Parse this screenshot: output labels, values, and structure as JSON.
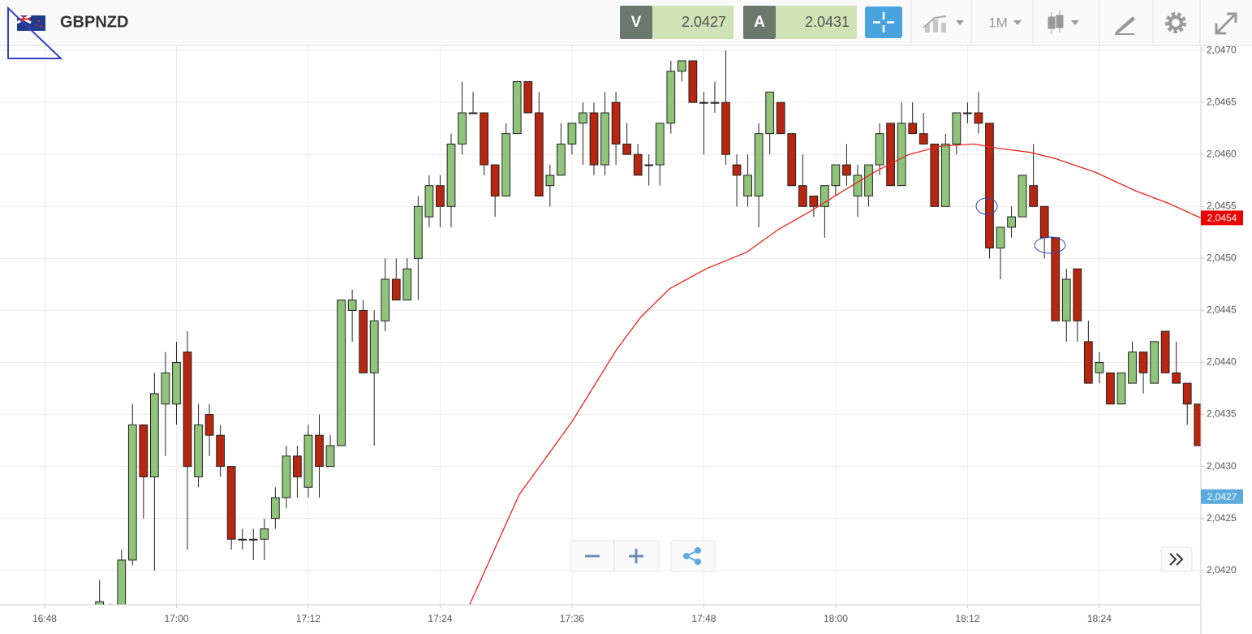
{
  "chart_data": {
    "type": "candlestick",
    "title": "GBPNZD",
    "quotes": [
      {
        "label": "V",
        "value": 2.0427
      },
      {
        "label": "A",
        "value": 2.0431
      }
    ],
    "timeframe": "1M",
    "up_color": "#8fc47a",
    "down_color": "#b8260f",
    "x": [
      1013,
      1014,
      1015,
      1016,
      1017,
      1018,
      1019,
      1020,
      1021,
      1022,
      1023,
      1024,
      1025,
      1026,
      1027,
      1028,
      1029,
      1030,
      1031,
      1032,
      1033,
      1034,
      1035,
      1036,
      1037,
      1038,
      1039,
      1040,
      1041,
      1042,
      1043,
      1044,
      1045,
      1046,
      1047,
      1048,
      1049,
      1050,
      1051,
      1052,
      1053,
      1054,
      1055,
      1056,
      1057,
      1058,
      1059,
      1060,
      1061,
      1062,
      1063,
      1064,
      1065,
      1066,
      1067,
      1068,
      1069,
      1070,
      1071,
      1072,
      1073,
      1074,
      1075,
      1076,
      1077,
      1078,
      1079,
      1080,
      1081,
      1082,
      1083,
      1084,
      1085,
      1086,
      1087,
      1088,
      1089,
      1090,
      1091,
      1092,
      1093,
      1094,
      1095,
      1096,
      1097,
      1098,
      1099,
      1100,
      1101,
      1102,
      1103,
      1104,
      1105,
      1106,
      1107,
      1108,
      1109,
      1110,
      1111,
      1112,
      1113
    ],
    "open": [
      2.04167,
      2.0416,
      2.04162,
      2.0421,
      2.0434,
      2.0429,
      2.0436,
      2.0436,
      2.0441,
      2.0429,
      2.0435,
      2.0433,
      2.043,
      2.0423,
      2.0423,
      2.0423,
      2.0425,
      2.0427,
      2.0431,
      2.0428,
      2.0433,
      2.043,
      2.0432,
      2.0445,
      2.0445,
      2.0439,
      2.0444,
      2.0448,
      2.0446,
      2.045,
      2.0454,
      2.0457,
      2.0455,
      2.0461,
      2.0464,
      2.0464,
      2.0459,
      2.0456,
      2.0462,
      2.0467,
      2.0464,
      2.0457,
      2.0458,
      2.0461,
      2.0463,
      2.0464,
      2.0459,
      2.0465,
      2.0461,
      2.046,
      2.0459,
      2.0459,
      2.0463,
      2.0468,
      2.0469,
      2.0465,
      2.0465,
      2.0465,
      2.0459,
      2.0456,
      2.0456,
      2.0462,
      2.0465,
      2.0462,
      2.0457,
      2.0456,
      2.0455,
      2.0457,
      2.0459,
      2.0456,
      2.0456,
      2.0459,
      2.0463,
      2.0457,
      2.0463,
      2.0462,
      2.0461,
      2.0455,
      2.0461,
      2.0464,
      2.0464,
      2.0463,
      2.0451,
      2.0453,
      2.0454,
      2.0457,
      2.0455,
      2.0452,
      2.0444,
      2.0449,
      2.0442,
      2.0439,
      2.0439,
      2.0436,
      2.0438,
      2.0441,
      2.0438,
      2.0443,
      2.0439,
      2.0438,
      2.0436
    ],
    "high": [
      2.04191,
      2.04168,
      2.0422,
      2.0436,
      2.0434,
      2.0439,
      2.0441,
      2.0442,
      2.0443,
      2.0436,
      2.0436,
      2.0434,
      2.043,
      2.0424,
      2.0424,
      2.0425,
      2.0428,
      2.0432,
      2.0432,
      2.0434,
      2.0435,
      2.0433,
      2.0446,
      2.0447,
      2.0446,
      2.0445,
      2.045,
      2.045,
      2.045,
      2.0456,
      2.0458,
      2.0458,
      2.0462,
      2.0467,
      2.0466,
      2.0464,
      2.0459,
      2.0463,
      2.0467,
      2.0467,
      2.0466,
      2.0459,
      2.0463,
      2.0463,
      2.0465,
      2.0465,
      2.0466,
      2.0466,
      2.0463,
      2.0461,
      2.046,
      2.0463,
      2.0469,
      2.0469,
      2.0469,
      2.0466,
      2.0467,
      2.047,
      2.046,
      2.046,
      2.0463,
      2.0466,
      2.0465,
      2.0462,
      2.046,
      2.0456,
      2.0457,
      2.0459,
      2.0461,
      2.0459,
      2.0459,
      2.0463,
      2.0463,
      2.0465,
      2.0465,
      2.0464,
      2.0461,
      2.0462,
      2.0464,
      2.0465,
      2.0466,
      2.0463,
      2.0453,
      2.0455,
      2.0458,
      2.0461,
      2.0455,
      2.0452,
      2.0449,
      2.0449,
      2.0444,
      2.0441,
      2.0439,
      2.0439,
      2.0442,
      2.0441,
      2.0442,
      2.0443,
      2.0442,
      2.0438,
      2.0436
    ],
    "low": [
      2.0416,
      2.0415,
      2.04155,
      2.04205,
      2.0425,
      2.042,
      2.0431,
      2.0434,
      2.0422,
      2.0428,
      2.0431,
      2.0429,
      2.0422,
      2.0422,
      2.0421,
      2.0421,
      2.0424,
      2.0426,
      2.0427,
      2.0427,
      2.0427,
      2.043,
      2.0432,
      2.0442,
      2.0439,
      2.0432,
      2.0443,
      2.0446,
      2.0446,
      2.0446,
      2.0453,
      2.0453,
      2.0453,
      2.046,
      2.0464,
      2.0458,
      2.0454,
      2.0456,
      2.0462,
      2.0464,
      2.0456,
      2.0455,
      2.0458,
      2.046,
      2.0459,
      2.0458,
      2.0458,
      2.0459,
      2.046,
      2.0458,
      2.0457,
      2.0457,
      2.0462,
      2.0467,
      2.0465,
      2.046,
      2.0464,
      2.0459,
      2.0455,
      2.0455,
      2.0453,
      2.046,
      2.0462,
      2.0457,
      2.0455,
      2.0454,
      2.0452,
      2.0456,
      2.0457,
      2.0454,
      2.0455,
      2.0458,
      2.0457,
      2.0457,
      2.0462,
      2.0461,
      2.0455,
      2.0455,
      2.046,
      2.0463,
      2.0462,
      2.045,
      2.0448,
      2.0452,
      2.0454,
      2.0455,
      2.045,
      2.0444,
      2.0442,
      2.0442,
      2.0438,
      2.0438,
      2.0436,
      2.0436,
      2.0438,
      2.0437,
      2.0438,
      2.0439,
      2.0438,
      2.0434,
      2.0432
    ],
    "close": [
      2.0417,
      2.04165,
      2.0421,
      2.0434,
      2.0429,
      2.0437,
      2.0439,
      2.044,
      2.043,
      2.0434,
      2.0433,
      2.043,
      2.0423,
      2.0423,
      2.0423,
      2.0424,
      2.0427,
      2.0431,
      2.0429,
      2.0433,
      2.043,
      2.0432,
      2.0446,
      2.0446,
      2.0439,
      2.0444,
      2.0448,
      2.0446,
      2.0449,
      2.0455,
      2.0457,
      2.0455,
      2.0461,
      2.0464,
      2.0464,
      2.0459,
      2.0456,
      2.0462,
      2.0467,
      2.0464,
      2.0456,
      2.0458,
      2.0461,
      2.0463,
      2.0464,
      2.0459,
      2.0464,
      2.0461,
      2.046,
      2.0458,
      2.0459,
      2.0463,
      2.0468,
      2.0469,
      2.0465,
      2.0465,
      2.0465,
      2.046,
      2.0458,
      2.0458,
      2.0462,
      2.0466,
      2.0462,
      2.0457,
      2.0455,
      2.0455,
      2.0457,
      2.0459,
      2.0458,
      2.0458,
      2.0459,
      2.0462,
      2.0457,
      2.0463,
      2.0462,
      2.0461,
      2.0455,
      2.0461,
      2.0464,
      2.0464,
      2.0463,
      2.0451,
      2.0453,
      2.0454,
      2.0458,
      2.0455,
      2.0452,
      2.0444,
      2.0448,
      2.0444,
      2.0438,
      2.044,
      2.0436,
      2.0439,
      2.0441,
      2.0439,
      2.0442,
      2.0439,
      2.0438,
      2.0436,
      2.0432
    ],
    "moving_average": {
      "color": "#e8241c",
      "x": [
        1046.6,
        1051.2,
        1056.0,
        1060.1,
        1062.3,
        1064.9,
        1068.2,
        1071.9,
        1074.8,
        1077.8,
        1080.7,
        1083.7,
        1086.7,
        1089.6,
        1092.6,
        1094.8,
        1097.7,
        1100.0,
        1103.6,
        1107.3,
        1110.3,
        1113.2
      ],
      "values": [
        2.04165,
        2.04273,
        2.04343,
        2.04413,
        2.04444,
        2.04471,
        2.0449,
        2.04506,
        2.04528,
        2.04546,
        2.04565,
        2.04584,
        2.046,
        2.04608,
        2.0461,
        2.04606,
        2.04602,
        2.04596,
        2.04583,
        2.04565,
        2.04553,
        2.04539
      ]
    },
    "price_labels": [
      {
        "value": 2.04539,
        "label": "2,0454",
        "color": "#ee0000"
      },
      {
        "value": 2.04271,
        "label": "2,0427",
        "color": "#5aaadf"
      }
    ],
    "xlim": [
      1003.94,
      1113.24
    ],
    "xticks": [
      {
        "value": 1008,
        "label": "16:48"
      },
      {
        "value": 1020,
        "label": "17:00"
      },
      {
        "value": 1032,
        "label": "17:12"
      },
      {
        "value": 1044,
        "label": "17:24"
      },
      {
        "value": 1056,
        "label": "17:36"
      },
      {
        "value": 1068,
        "label": "17:48"
      },
      {
        "value": 1080,
        "label": "18:00"
      },
      {
        "value": 1092,
        "label": "18:12"
      },
      {
        "value": 1104,
        "label": "18:24"
      }
    ],
    "ylim": [
      2.04167,
      2.04704
    ],
    "yticks": [
      {
        "value": 2.042,
        "label": "2,0420"
      },
      {
        "value": 2.0425,
        "label": "2,0425"
      },
      {
        "value": 2.043,
        "label": "2,0430"
      },
      {
        "value": 2.0435,
        "label": "2,0435"
      },
      {
        "value": 2.044,
        "label": "2,0440"
      },
      {
        "value": 2.0445,
        "label": "2,0445"
      },
      {
        "value": 2.045,
        "label": "2,0450"
      },
      {
        "value": 2.0455,
        "label": "2,0455"
      },
      {
        "value": 2.046,
        "label": "2,0460"
      },
      {
        "value": 2.0465,
        "label": "2,0465"
      },
      {
        "value": 2.047,
        "label": "2,0470"
      }
    ],
    "grid": true
  }
}
